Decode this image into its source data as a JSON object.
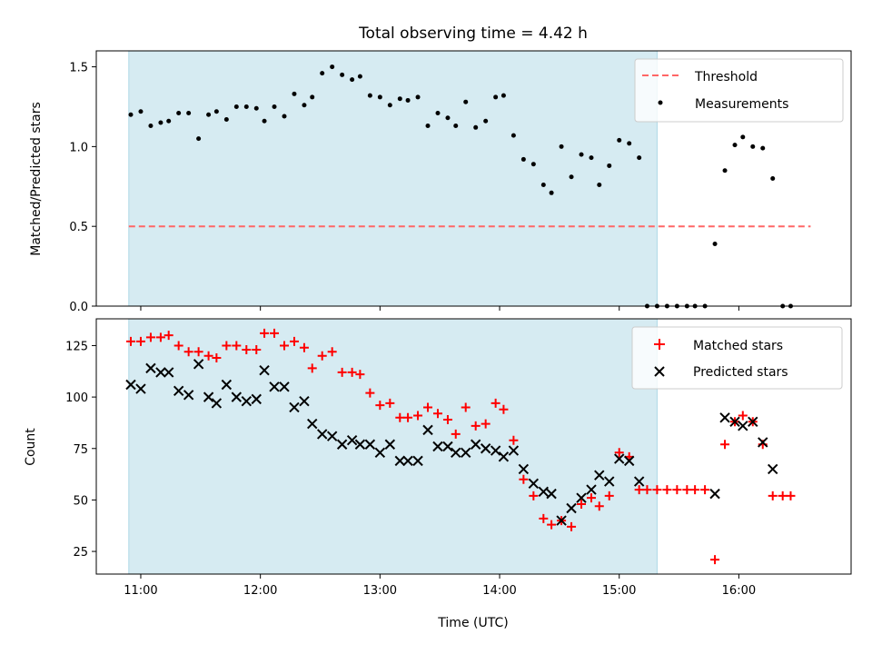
{
  "chart_data": [
    {
      "type": "scatter",
      "title": "Total observing time = 4.42 h",
      "xlabel": "",
      "ylabel": "Matched/Predicted stars",
      "ylim": [
        0,
        1.6
      ],
      "yticks": [
        0.0,
        0.5,
        1.0,
        1.5
      ],
      "ytick_labels": [
        "0.0",
        "0.5",
        "1.0",
        "1.5"
      ],
      "xlim": [
        "10:55",
        "16:39"
      ],
      "shaded_interval": [
        "10:54",
        "15:19"
      ],
      "shade_color": "#add8e6",
      "legend_position": "upper-right",
      "series": [
        {
          "name": "Threshold",
          "kind": "dashed-line",
          "color": "#ff6666",
          "x": [
            "10:54",
            "16:36"
          ],
          "values": [
            0.5,
            0.5
          ]
        },
        {
          "name": "Measurements",
          "kind": "dots",
          "color": "#000000",
          "points": [
            [
              "10:55",
              1.2
            ],
            [
              "11:00",
              1.22
            ],
            [
              "11:05",
              1.13
            ],
            [
              "11:10",
              1.15
            ],
            [
              "11:14",
              1.16
            ],
            [
              "11:19",
              1.21
            ],
            [
              "11:24",
              1.21
            ],
            [
              "11:29",
              1.05
            ],
            [
              "11:34",
              1.2
            ],
            [
              "11:38",
              1.22
            ],
            [
              "11:43",
              1.17
            ],
            [
              "11:48",
              1.25
            ],
            [
              "11:53",
              1.25
            ],
            [
              "11:58",
              1.24
            ],
            [
              "12:02",
              1.16
            ],
            [
              "12:07",
              1.25
            ],
            [
              "12:12",
              1.19
            ],
            [
              "12:17",
              1.33
            ],
            [
              "12:22",
              1.26
            ],
            [
              "12:26",
              1.31
            ],
            [
              "12:31",
              1.46
            ],
            [
              "12:36",
              1.5
            ],
            [
              "12:41",
              1.45
            ],
            [
              "12:46",
              1.42
            ],
            [
              "12:50",
              1.44
            ],
            [
              "12:55",
              1.32
            ],
            [
              "13:00",
              1.31
            ],
            [
              "13:05",
              1.26
            ],
            [
              "13:10",
              1.3
            ],
            [
              "13:14",
              1.29
            ],
            [
              "13:19",
              1.31
            ],
            [
              "13:24",
              1.13
            ],
            [
              "13:29",
              1.21
            ],
            [
              "13:34",
              1.18
            ],
            [
              "13:38",
              1.13
            ],
            [
              "13:43",
              1.28
            ],
            [
              "13:48",
              1.12
            ],
            [
              "13:53",
              1.16
            ],
            [
              "13:58",
              1.31
            ],
            [
              "14:02",
              1.32
            ],
            [
              "14:07",
              1.07
            ],
            [
              "14:12",
              0.92
            ],
            [
              "14:17",
              0.89
            ],
            [
              "14:22",
              0.76
            ],
            [
              "14:26",
              0.71
            ],
            [
              "14:31",
              1.0
            ],
            [
              "14:36",
              0.81
            ],
            [
              "14:41",
              0.95
            ],
            [
              "14:46",
              0.93
            ],
            [
              "14:50",
              0.76
            ],
            [
              "14:55",
              0.88
            ],
            [
              "15:00",
              1.04
            ],
            [
              "15:05",
              1.02
            ],
            [
              "15:10",
              0.93
            ],
            [
              "15:14",
              0.0
            ],
            [
              "15:19",
              0.0
            ],
            [
              "15:24",
              0.0
            ],
            [
              "15:29",
              0.0
            ],
            [
              "15:34",
              0.0
            ],
            [
              "15:38",
              0.0
            ],
            [
              "15:43",
              0.0
            ],
            [
              "15:48",
              0.39
            ],
            [
              "15:53",
              0.85
            ],
            [
              "15:58",
              1.01
            ],
            [
              "16:02",
              1.06
            ],
            [
              "16:07",
              1.0
            ],
            [
              "16:12",
              0.99
            ],
            [
              "16:17",
              0.8
            ],
            [
              "16:22",
              0.0
            ],
            [
              "16:26",
              0.0
            ]
          ]
        }
      ]
    },
    {
      "type": "scatter",
      "title": "",
      "xlabel": "Time (UTC)",
      "ylabel": "Count",
      "ylim": [
        14,
        138
      ],
      "yticks": [
        25,
        50,
        75,
        100,
        125
      ],
      "ytick_labels": [
        "25",
        "50",
        "75",
        "100",
        "125"
      ],
      "xlim": [
        "10:55",
        "16:39"
      ],
      "xticks": [
        "11:00",
        "12:00",
        "13:00",
        "14:00",
        "15:00",
        "16:00"
      ],
      "shaded_interval": [
        "10:54",
        "15:19"
      ],
      "shade_color": "#add8e6",
      "legend_position": "upper-right",
      "series": [
        {
          "name": "Matched stars",
          "marker": "plus",
          "color": "#ff0000",
          "points": [
            [
              "10:55",
              127
            ],
            [
              "11:00",
              127
            ],
            [
              "11:05",
              129
            ],
            [
              "11:10",
              129
            ],
            [
              "11:14",
              130
            ],
            [
              "11:19",
              125
            ],
            [
              "11:24",
              122
            ],
            [
              "11:29",
              122
            ],
            [
              "11:34",
              120
            ],
            [
              "11:38",
              119
            ],
            [
              "11:43",
              125
            ],
            [
              "11:48",
              125
            ],
            [
              "11:53",
              123
            ],
            [
              "11:58",
              123
            ],
            [
              "12:02",
              131
            ],
            [
              "12:07",
              131
            ],
            [
              "12:12",
              125
            ],
            [
              "12:17",
              127
            ],
            [
              "12:22",
              124
            ],
            [
              "12:26",
              114
            ],
            [
              "12:31",
              120
            ],
            [
              "12:36",
              122
            ],
            [
              "12:41",
              112
            ],
            [
              "12:46",
              112
            ],
            [
              "12:50",
              111
            ],
            [
              "12:55",
              102
            ],
            [
              "13:00",
              96
            ],
            [
              "13:05",
              97
            ],
            [
              "13:10",
              90
            ],
            [
              "13:14",
              90
            ],
            [
              "13:19",
              91
            ],
            [
              "13:24",
              95
            ],
            [
              "13:29",
              92
            ],
            [
              "13:34",
              89
            ],
            [
              "13:38",
              82
            ],
            [
              "13:43",
              95
            ],
            [
              "13:48",
              86
            ],
            [
              "13:53",
              87
            ],
            [
              "13:58",
              97
            ],
            [
              "14:02",
              94
            ],
            [
              "14:07",
              79
            ],
            [
              "14:12",
              60
            ],
            [
              "14:17",
              52
            ],
            [
              "14:22",
              41
            ],
            [
              "14:26",
              38
            ],
            [
              "14:31",
              40
            ],
            [
              "14:36",
              37
            ],
            [
              "14:41",
              48
            ],
            [
              "14:46",
              51
            ],
            [
              "14:50",
              47
            ],
            [
              "14:55",
              52
            ],
            [
              "15:00",
              73
            ],
            [
              "15:05",
              71
            ],
            [
              "15:10",
              55
            ],
            [
              "15:14",
              55
            ],
            [
              "15:19",
              55
            ],
            [
              "15:24",
              55
            ],
            [
              "15:29",
              55
            ],
            [
              "15:34",
              55
            ],
            [
              "15:38",
              55
            ],
            [
              "15:43",
              55
            ],
            [
              "15:48",
              21
            ],
            [
              "15:53",
              77
            ],
            [
              "15:58",
              88
            ],
            [
              "16:02",
              91
            ],
            [
              "16:07",
              88
            ],
            [
              "16:12",
              77
            ],
            [
              "16:17",
              52
            ],
            [
              "16:22",
              52
            ],
            [
              "16:26",
              52
            ]
          ]
        },
        {
          "name": "Predicted stars",
          "marker": "x",
          "color": "#000000",
          "points": [
            [
              "10:55",
              106
            ],
            [
              "11:00",
              104
            ],
            [
              "11:05",
              114
            ],
            [
              "11:10",
              112
            ],
            [
              "11:14",
              112
            ],
            [
              "11:19",
              103
            ],
            [
              "11:24",
              101
            ],
            [
              "11:29",
              116
            ],
            [
              "11:34",
              100
            ],
            [
              "11:38",
              97
            ],
            [
              "11:43",
              106
            ],
            [
              "11:48",
              100
            ],
            [
              "11:53",
              98
            ],
            [
              "11:58",
              99
            ],
            [
              "12:02",
              113
            ],
            [
              "12:07",
              105
            ],
            [
              "12:12",
              105
            ],
            [
              "12:17",
              95
            ],
            [
              "12:22",
              98
            ],
            [
              "12:26",
              87
            ],
            [
              "12:31",
              82
            ],
            [
              "12:36",
              81
            ],
            [
              "12:41",
              77
            ],
            [
              "12:46",
              79
            ],
            [
              "12:50",
              77
            ],
            [
              "12:55",
              77
            ],
            [
              "13:00",
              73
            ],
            [
              "13:05",
              77
            ],
            [
              "13:10",
              69
            ],
            [
              "13:14",
              69
            ],
            [
              "13:19",
              69
            ],
            [
              "13:24",
              84
            ],
            [
              "13:29",
              76
            ],
            [
              "13:34",
              76
            ],
            [
              "13:38",
              73
            ],
            [
              "13:43",
              73
            ],
            [
              "13:48",
              77
            ],
            [
              "13:53",
              75
            ],
            [
              "13:58",
              74
            ],
            [
              "14:02",
              71
            ],
            [
              "14:07",
              74
            ],
            [
              "14:12",
              65
            ],
            [
              "14:17",
              58
            ],
            [
              "14:22",
              54
            ],
            [
              "14:26",
              53
            ],
            [
              "14:31",
              40
            ],
            [
              "14:36",
              46
            ],
            [
              "14:41",
              51
            ],
            [
              "14:46",
              55
            ],
            [
              "14:50",
              62
            ],
            [
              "14:55",
              59
            ],
            [
              "15:00",
              70
            ],
            [
              "15:05",
              69
            ],
            [
              "15:10",
              59
            ],
            [
              "15:48",
              53
            ],
            [
              "15:53",
              90
            ],
            [
              "15:58",
              88
            ],
            [
              "16:02",
              86
            ],
            [
              "16:07",
              88
            ],
            [
              "16:12",
              78
            ],
            [
              "16:17",
              65
            ]
          ]
        }
      ]
    }
  ]
}
